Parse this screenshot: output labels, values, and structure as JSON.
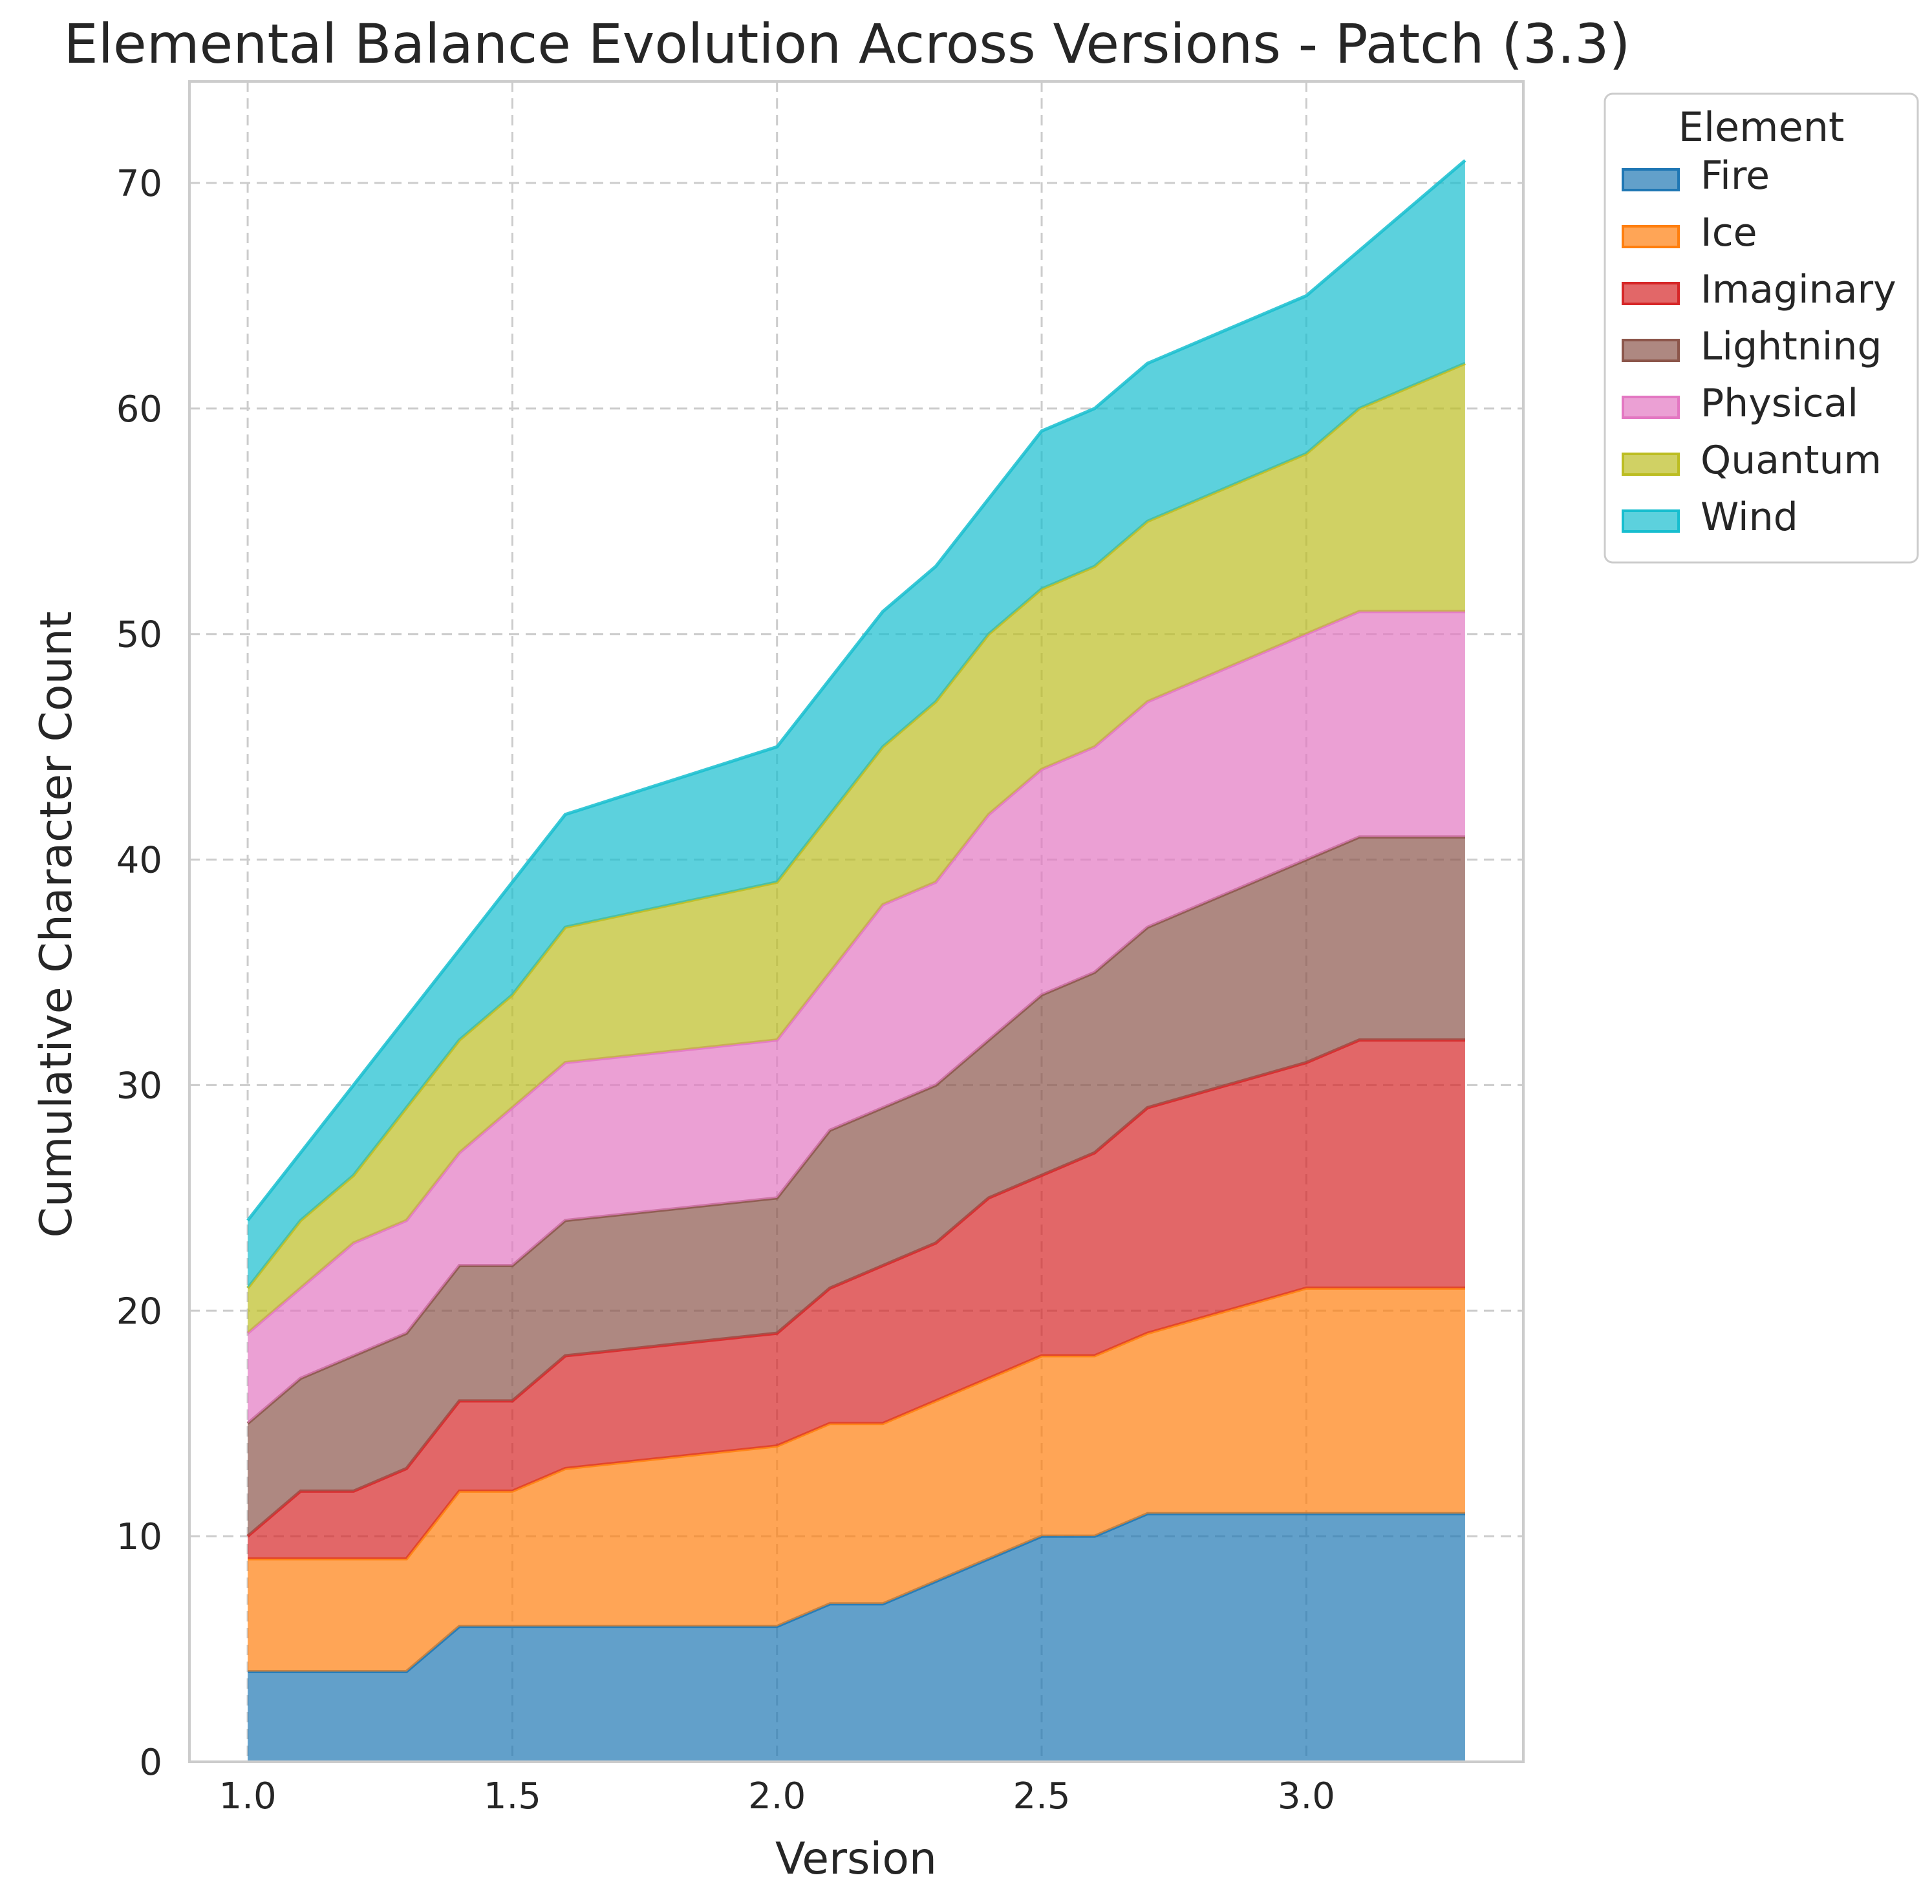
{
  "title": "Elemental Balance Evolution Across Versions - Patch (3.3)",
  "chart_data": {
    "type": "area",
    "stacked": true,
    "title": "Elemental Balance Evolution Across Versions - Patch (3.3)",
    "xlabel": "Version",
    "ylabel": "Cumulative Character Count",
    "xlim": [
      0.89,
      3.41
    ],
    "ylim": [
      0,
      74.5
    ],
    "xticks": [
      "1.0",
      "1.5",
      "2.0",
      "2.5",
      "3.0"
    ],
    "yticks": [
      "0",
      "10",
      "20",
      "30",
      "40",
      "50",
      "60",
      "70"
    ],
    "grid": true,
    "legend": {
      "title": "Element",
      "placement": "outside-top-right"
    },
    "x": [
      1.0,
      1.1,
      1.2,
      1.3,
      1.4,
      1.5,
      1.6,
      2.0,
      2.1,
      2.2,
      2.3,
      2.4,
      2.5,
      2.6,
      2.7,
      3.0,
      3.1,
      3.3
    ],
    "series": [
      {
        "name": "Fire",
        "color": "#1f77b4",
        "values": [
          4,
          4,
          4,
          4,
          6,
          6,
          6,
          6,
          7,
          7,
          8,
          9,
          10,
          10,
          11,
          11,
          11,
          11
        ]
      },
      {
        "name": "Ice",
        "color": "#ff7f0e",
        "values": [
          5,
          5,
          5,
          5,
          6,
          6,
          7,
          8,
          8,
          8,
          8,
          8,
          8,
          8,
          8,
          10,
          10,
          10
        ]
      },
      {
        "name": "Imaginary",
        "color": "#d62728",
        "values": [
          1,
          3,
          3,
          4,
          4,
          4,
          5,
          5,
          6,
          7,
          7,
          8,
          8,
          9,
          10,
          10,
          11,
          11
        ]
      },
      {
        "name": "Lightning",
        "color": "#8c564b",
        "values": [
          5,
          5,
          6,
          6,
          6,
          6,
          6,
          6,
          7,
          7,
          7,
          7,
          8,
          8,
          8,
          9,
          9,
          9
        ]
      },
      {
        "name": "Physical",
        "color": "#e377c2",
        "values": [
          4,
          4,
          5,
          5,
          5,
          7,
          7,
          7,
          7,
          9,
          9,
          10,
          10,
          10,
          10,
          10,
          10,
          10
        ]
      },
      {
        "name": "Quantum",
        "color": "#bcbd22",
        "values": [
          2,
          3,
          3,
          5,
          5,
          5,
          6,
          7,
          7,
          7,
          8,
          8,
          8,
          8,
          8,
          8,
          9,
          11
        ]
      },
      {
        "name": "Wind",
        "color": "#17becf",
        "values": [
          3,
          3,
          4,
          4,
          4,
          5,
          5,
          6,
          6,
          6,
          6,
          6,
          7,
          7,
          7,
          7,
          7,
          9
        ]
      }
    ]
  }
}
